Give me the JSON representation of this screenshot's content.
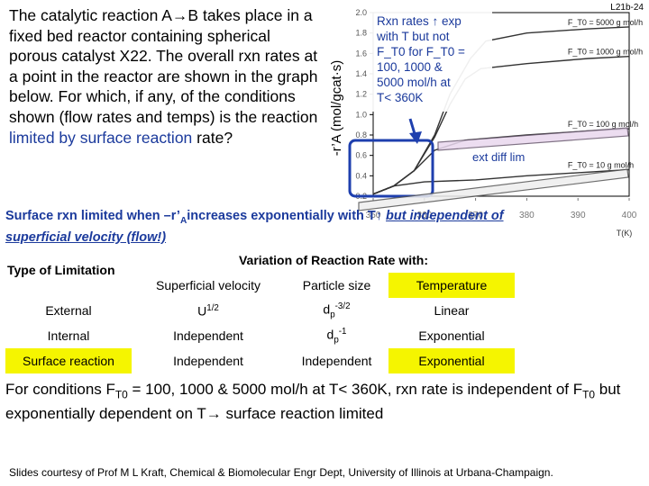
{
  "slide_id": "L21b-24",
  "question": {
    "part1": "The catalytic reaction A→B takes place in a fixed bed reactor containing spherical porous catalyst X22. The overall rxn rates at a point in the reactor are shown in the graph below. For which, if any, of the conditions shown (flow rates and temps) is the reaction ",
    "part2": "limited by surface reaction",
    "part3": " rate?"
  },
  "conclusion_top": {
    "p1": "Surface rxn limited when –r’",
    "sub": "A",
    "p2": "increases exponentially with T↑ ",
    "underlined": "but independent of superficial velocity (flow!)"
  },
  "table": {
    "type_header": "Type of Limitation",
    "variation_header": "Variation of Reaction Rate with:",
    "columns": [
      "Superficial velocity",
      "Particle size",
      "Temperature"
    ],
    "rows": [
      {
        "type": "External",
        "velocity": "U",
        "velocity_sup": "1/2",
        "particle": "d",
        "particle_sub": "p",
        "particle_sup": "-3/2",
        "temperature": "Linear"
      },
      {
        "type": "Internal",
        "velocity": "Independent",
        "particle": "d",
        "particle_sub": "p",
        "particle_sup": "-1",
        "temperature": "Exponential"
      },
      {
        "type": "Surface reaction",
        "velocity": "Independent",
        "particle": "Independent",
        "temperature": "Exponential"
      }
    ]
  },
  "conclusion_bottom": {
    "p1": "For conditions F",
    "sub1": "T0",
    "p2": " = 100, 1000 & 5000 mol/h at T< 360K, rxn rate is independent of F",
    "sub2": "T0",
    "p3": " but exponentially dependent on T→ surface reaction limited"
  },
  "footer": "Slides courtesy of Prof M L Kraft, Chemical & Biomolecular Engr Dept, University of Illinois at Urbana-Champaign.",
  "chart_annotation": {
    "lines": [
      "Rxn rates ↑ exp",
      "with T but not",
      "F_T0 for F_T0 =",
      "100, 1000 &",
      "5000 mol/h at",
      "T< 360K"
    ],
    "ext_diff": "ext diff lim"
  },
  "chart_data": {
    "type": "line",
    "ylabel": "-r’A (mol/gcat·s)",
    "xlabel": "T(K)",
    "x_ticks": [
      350,
      360,
      370,
      380,
      390,
      400
    ],
    "y_ticks": [
      0.2,
      0.4,
      0.6,
      0.8,
      1.0,
      1.2,
      1.4,
      1.6,
      1.8,
      2.0
    ],
    "series": [
      {
        "name": "F_T0 = 5000 g mol/h",
        "points": [
          [
            350,
            0.22
          ],
          [
            354,
            0.3
          ],
          [
            358,
            0.45
          ],
          [
            362,
            0.8
          ],
          [
            365,
            1.2
          ],
          [
            369,
            1.55
          ],
          [
            372,
            1.72
          ],
          [
            380,
            1.8
          ],
          [
            392,
            1.84
          ],
          [
            400,
            1.86
          ]
        ]
      },
      {
        "name": "F_T0 = 1000 g mol/h",
        "points": [
          [
            350,
            0.22
          ],
          [
            354,
            0.3
          ],
          [
            358,
            0.45
          ],
          [
            362,
            0.78
          ],
          [
            365,
            1.1
          ],
          [
            368,
            1.35
          ],
          [
            371,
            1.45
          ],
          [
            380,
            1.5
          ],
          [
            392,
            1.55
          ],
          [
            400,
            1.57
          ]
        ]
      },
      {
        "name": "F_T0 = 100 g mol/h",
        "points": [
          [
            350,
            0.22
          ],
          [
            354,
            0.3
          ],
          [
            358,
            0.45
          ],
          [
            362,
            0.65
          ],
          [
            368,
            0.75
          ],
          [
            380,
            0.8
          ],
          [
            392,
            0.84
          ],
          [
            400,
            0.86
          ]
        ]
      },
      {
        "name": "F_T0 = 10 g mol/h",
        "points": [
          [
            350,
            0.22
          ],
          [
            354,
            0.3
          ],
          [
            360,
            0.34
          ],
          [
            370,
            0.36
          ],
          [
            380,
            0.4
          ],
          [
            390,
            0.43
          ],
          [
            400,
            0.46
          ]
        ]
      }
    ]
  }
}
